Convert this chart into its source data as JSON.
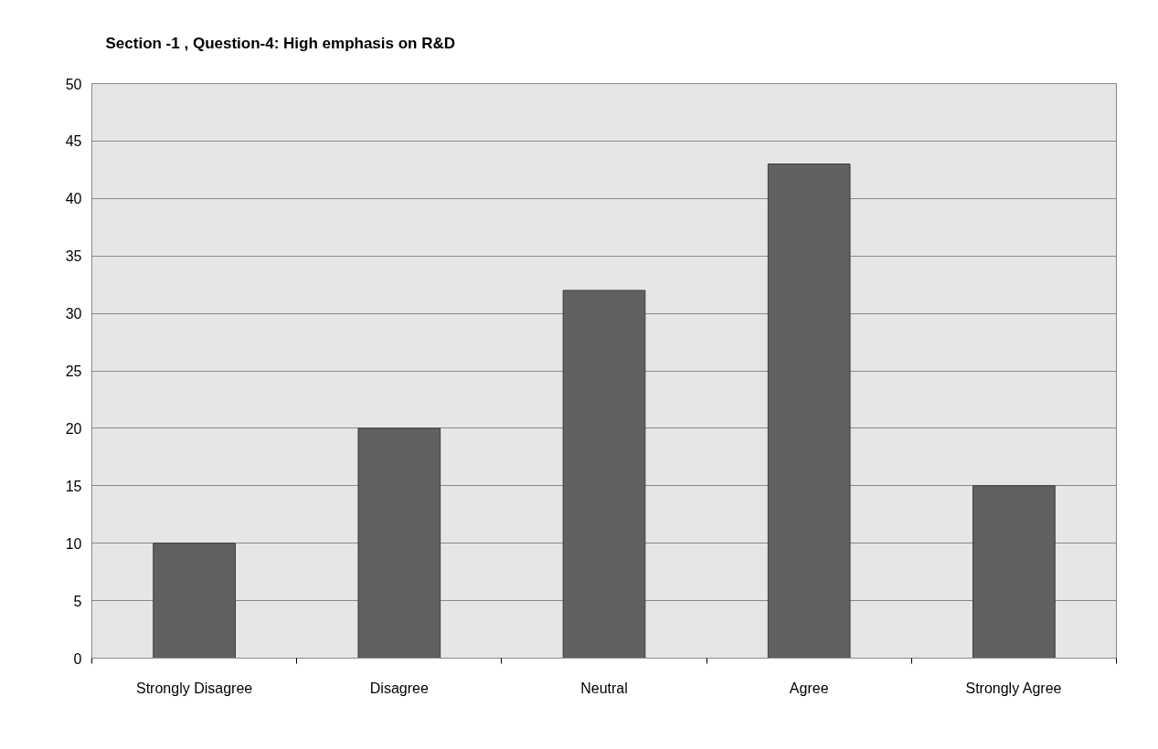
{
  "chart_data": {
    "type": "bar",
    "title": "Section -1 , Question-4: High emphasis on R&D",
    "categories": [
      "Strongly Disagree",
      "Disagree",
      "Neutral",
      "Agree",
      "Strongly Agree"
    ],
    "values": [
      10,
      20,
      32,
      43,
      15
    ],
    "color": "#616161",
    "ylim": [
      0,
      50
    ],
    "yticks": [
      0,
      5,
      10,
      15,
      20,
      25,
      30,
      35,
      40,
      45,
      50
    ],
    "grid": "y"
  }
}
